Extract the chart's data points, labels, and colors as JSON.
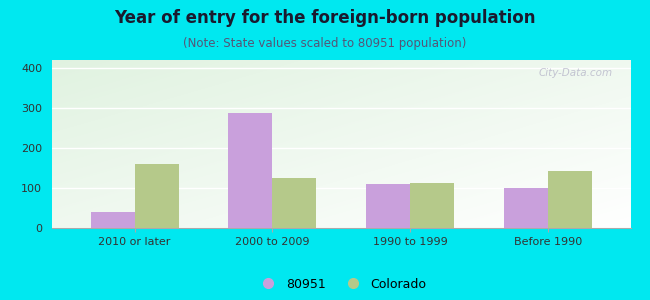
{
  "title": "Year of entry for the foreign-born population",
  "subtitle": "(Note: State values scaled to 80951 population)",
  "categories": [
    "2010 or later",
    "2000 to 2009",
    "1990 to 1999",
    "Before 1990"
  ],
  "values_80951": [
    40,
    288,
    110,
    100
  ],
  "values_colorado": [
    160,
    125,
    112,
    143
  ],
  "color_80951": "#c9a0dc",
  "color_colorado": "#b5c98a",
  "ylim": [
    0,
    420
  ],
  "yticks": [
    0,
    100,
    200,
    300,
    400
  ],
  "bar_width": 0.32,
  "background_color": "#00e8f0",
  "legend_label_80951": "80951",
  "legend_label_colorado": "Colorado",
  "title_fontsize": 12,
  "subtitle_fontsize": 8.5,
  "tick_fontsize": 8,
  "legend_fontsize": 9
}
